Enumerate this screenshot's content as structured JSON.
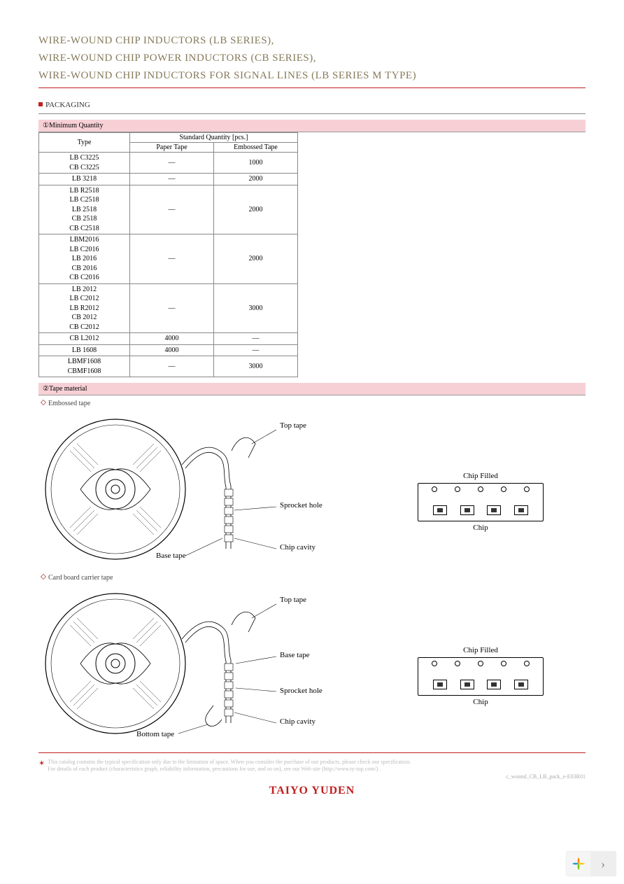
{
  "title": {
    "line1": "WIRE-WOUND CHIP INDUCTORS (LB SERIES),",
    "line2": "WIRE-WOUND CHIP POWER INDUCTORS (CB SERIES),",
    "line3": "WIRE-WOUND CHIP INDUCTORS FOR SIGNAL LINES (LB SERIES M TYPE)",
    "color": "#867a5a"
  },
  "section_packaging": "PACKAGING",
  "bar_minqty": "①Minimum Quantity",
  "table": {
    "head_type": "Type",
    "head_std": "Standard Quantity  [pcs.]",
    "head_paper": "Paper Tape",
    "head_emboss": "Embossed Tape",
    "rows": [
      {
        "types": "LB C3225\nCB C3225",
        "paper": "―",
        "emboss": "1000"
      },
      {
        "types": "LB  3218",
        "paper": "―",
        "emboss": "2000"
      },
      {
        "types": "LB R2518\nLB C2518\nLB  2518\nCB  2518\nCB C2518",
        "paper": "―",
        "emboss": "2000"
      },
      {
        "types": "LBM2016\nLB C2016\nLB  2016\nCB  2016\nCB C2016",
        "paper": "―",
        "emboss": "2000"
      },
      {
        "types": "LB  2012\nLB C2012\nLB R2012\nCB  2012\nCB C2012",
        "paper": "―",
        "emboss": "3000"
      },
      {
        "types": "CB L2012",
        "paper": "4000",
        "emboss": "―"
      },
      {
        "types": "LB  1608",
        "paper": "4000",
        "emboss": "―"
      },
      {
        "types": "LBMF1608\nCBMF1608",
        "paper": "―",
        "emboss": "3000"
      }
    ]
  },
  "bar_tapemat": "②Tape material",
  "diag1": {
    "sub": "Embossed tape",
    "labels": {
      "top_tape": "Top tape",
      "sprocket": "Sprocket hole",
      "base_tape": "Base tape",
      "chip_cavity": "Chip cavity",
      "chip_filled": "Chip Filled",
      "chip": "Chip"
    }
  },
  "diag2": {
    "sub": "Card board carrier tape",
    "labels": {
      "top_tape": "Top tape",
      "sprocket": "Sprocket hole",
      "base_tape": "Base tape",
      "bottom_tape": "Bottom tape",
      "chip_cavity": "Chip cavity",
      "chip_filled": "Chip Filled",
      "chip": "Chip"
    }
  },
  "footnote": {
    "line1": "This catalog contains the typical specification only due to the limitation of space. When you consider the purchase of our products, please check our specification.",
    "line2": "For details of each product (characteristics graph, reliability information, precautions for use, and so on), see our Web site (http://www.ty-top.com/) ."
  },
  "docid": "c_wound_CB_LB_pack_e-E03R01",
  "brand": "TAIYO YUDEN",
  "colors": {
    "accent_red": "#c02020",
    "pink_bar": "#f7d0d6",
    "title_olive": "#867a5a",
    "border_gray": "#888888",
    "foot_gray": "#bbbbbb"
  },
  "petal_colors": [
    "#ff7f00",
    "#ffc800",
    "#73c800",
    "#2196c8"
  ]
}
